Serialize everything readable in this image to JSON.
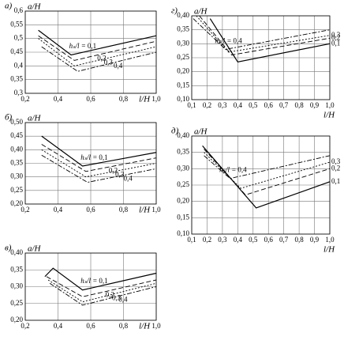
{
  "chart_data": [
    {
      "type": "line",
      "panel_label": "а)",
      "ylabel": "a/H",
      "xlabel": "l/H",
      "annotation": "hₛ/l =",
      "grid": true,
      "xlim": [
        0.2,
        1.0
      ],
      "ylim": [
        0.3,
        0.6
      ],
      "xticks": [
        {
          "value": 0.2,
          "label": "0,2"
        },
        {
          "value": 0.4,
          "label": "0,4"
        },
        {
          "value": 0.6,
          "label": "0,6"
        },
        {
          "value": 0.8,
          "label": "0,8"
        },
        {
          "value": 1.0,
          "label": "1,0"
        }
      ],
      "yticks": [
        {
          "value": 0.3,
          "label": "0,3"
        },
        {
          "value": 0.35,
          "label": "0,35"
        },
        {
          "value": 0.4,
          "label": "0,4"
        },
        {
          "value": 0.45,
          "label": "0,45"
        },
        {
          "value": 0.5,
          "label": "0,5"
        },
        {
          "value": 0.55,
          "label": "0,55"
        },
        {
          "value": 0.6,
          "label": "0,6"
        }
      ],
      "series": [
        {
          "name": "0,1",
          "color": "#000000",
          "dash": "none",
          "x": [
            0.28,
            0.48,
            1.0
          ],
          "values": [
            0.53,
            0.44,
            0.51
          ]
        },
        {
          "name": "0,2",
          "color": "#000000",
          "dash": "6 3",
          "x": [
            0.28,
            0.5,
            1.0
          ],
          "values": [
            0.51,
            0.42,
            0.49
          ]
        },
        {
          "name": "0,3",
          "color": "#000000",
          "dash": "2 2",
          "x": [
            0.28,
            0.5,
            1.0
          ],
          "values": [
            0.5,
            0.4,
            0.47
          ]
        },
        {
          "name": "0,4",
          "color": "#000000",
          "dash": "6 2 2 2",
          "x": [
            0.3,
            0.52,
            1.0
          ],
          "values": [
            0.47,
            0.38,
            0.45
          ]
        }
      ]
    },
    {
      "type": "line",
      "panel_label": "б)",
      "ylabel": "a/H",
      "xlabel": "l/H",
      "annotation": "hₛ/l =",
      "grid": true,
      "xlim": [
        0.2,
        1.0
      ],
      "ylim": [
        0.2,
        0.5
      ],
      "xticks": [
        {
          "value": 0.2,
          "label": "0,2"
        },
        {
          "value": 0.4,
          "label": "0,4"
        },
        {
          "value": 0.6,
          "label": "0,6"
        },
        {
          "value": 0.8,
          "label": "0,8"
        },
        {
          "value": 1.0,
          "label": "1,0"
        }
      ],
      "yticks": [
        {
          "value": 0.2,
          "label": "0,20"
        },
        {
          "value": 0.25,
          "label": "0,25"
        },
        {
          "value": 0.3,
          "label": "0,30"
        },
        {
          "value": 0.35,
          "label": "0,35"
        },
        {
          "value": 0.4,
          "label": "0,40"
        },
        {
          "value": 0.45,
          "label": "0,45"
        },
        {
          "value": 0.5,
          "label": "0,50"
        }
      ],
      "series": [
        {
          "name": "0,1",
          "color": "#000000",
          "dash": "none",
          "x": [
            0.3,
            0.55,
            1.0
          ],
          "values": [
            0.45,
            0.34,
            0.39
          ]
        },
        {
          "name": "0,2",
          "color": "#000000",
          "dash": "6 3",
          "x": [
            0.3,
            0.57,
            1.0
          ],
          "values": [
            0.42,
            0.32,
            0.37
          ]
        },
        {
          "name": "0,3",
          "color": "#000000",
          "dash": "2 2",
          "x": [
            0.3,
            0.57,
            1.0
          ],
          "values": [
            0.4,
            0.3,
            0.35
          ]
        },
        {
          "name": "0,4",
          "color": "#000000",
          "dash": "6 2 2 2",
          "x": [
            0.3,
            0.58,
            1.0
          ],
          "values": [
            0.38,
            0.28,
            0.33
          ]
        }
      ]
    },
    {
      "type": "line",
      "panel_label": "в)",
      "ylabel": "a/H",
      "xlabel": "l/H",
      "annotation": "hₛ/l =",
      "grid": true,
      "xlim": [
        0.2,
        1.0
      ],
      "ylim": [
        0.2,
        0.4
      ],
      "xticks": [
        {
          "value": 0.2,
          "label": "0,2"
        },
        {
          "value": 0.4,
          "label": "0,4"
        },
        {
          "value": 0.6,
          "label": "0,6"
        },
        {
          "value": 0.8,
          "label": "0,8"
        },
        {
          "value": 1.0,
          "label": "1,0"
        }
      ],
      "yticks": [
        {
          "value": 0.2,
          "label": "0,20"
        },
        {
          "value": 0.25,
          "label": "0,25"
        },
        {
          "value": 0.3,
          "label": "0,30"
        },
        {
          "value": 0.35,
          "label": "0,35"
        },
        {
          "value": 0.4,
          "label": "0,40"
        }
      ],
      "series": [
        {
          "name": "0,1",
          "color": "#000000",
          "dash": "none",
          "x": [
            0.32,
            0.37,
            0.55,
            1.0
          ],
          "values": [
            0.33,
            0.355,
            0.29,
            0.34
          ]
        },
        {
          "name": "0,2",
          "color": "#000000",
          "dash": "6 3",
          "x": [
            0.33,
            0.55,
            1.0
          ],
          "values": [
            0.33,
            0.27,
            0.32
          ]
        },
        {
          "name": "0,3",
          "color": "#000000",
          "dash": "2 2",
          "x": [
            0.34,
            0.55,
            1.0
          ],
          "values": [
            0.32,
            0.255,
            0.31
          ]
        },
        {
          "name": "0,4",
          "color": "#000000",
          "dash": "6 2 2 2",
          "x": [
            0.35,
            0.55,
            1.0
          ],
          "values": [
            0.31,
            0.245,
            0.3
          ]
        }
      ]
    },
    {
      "type": "line",
      "panel_label": "г)",
      "ylabel": "a/H",
      "xlabel": "l/H",
      "annotation": "hₛ/l =",
      "grid": true,
      "xlim": [
        0.1,
        1.0
      ],
      "ylim": [
        0.1,
        0.4
      ],
      "xticks": [
        {
          "value": 0.1,
          "label": "0,1"
        },
        {
          "value": 0.2,
          "label": "0,2"
        },
        {
          "value": 0.3,
          "label": "0,3"
        },
        {
          "value": 0.4,
          "label": "0,4"
        },
        {
          "value": 0.5,
          "label": "0,5"
        },
        {
          "value": 0.6,
          "label": "0,6"
        },
        {
          "value": 0.7,
          "label": "0,7"
        },
        {
          "value": 0.8,
          "label": "0,8"
        },
        {
          "value": 0.9,
          "label": "0,9"
        },
        {
          "value": 1.0,
          "label": "1,0"
        }
      ],
      "yticks": [
        {
          "value": 0.1,
          "label": "0,10"
        },
        {
          "value": 0.15,
          "label": "0,15"
        },
        {
          "value": 0.2,
          "label": "0,20"
        },
        {
          "value": 0.25,
          "label": "0,25"
        },
        {
          "value": 0.3,
          "label": "0,30"
        },
        {
          "value": 0.35,
          "label": "0,35"
        },
        {
          "value": 0.4,
          "label": "0,40"
        }
      ],
      "series": [
        {
          "name": "0,1",
          "color": "#000000",
          "dash": "none",
          "x": [
            0.22,
            0.4,
            1.0
          ],
          "values": [
            0.39,
            0.235,
            0.3
          ]
        },
        {
          "name": "0,2",
          "color": "#000000",
          "dash": "6 3",
          "x": [
            0.15,
            0.36,
            1.0
          ],
          "values": [
            0.4,
            0.26,
            0.32
          ]
        },
        {
          "name": "0,3",
          "color": "#000000",
          "dash": "2 2",
          "x": [
            0.13,
            0.34,
            1.0
          ],
          "values": [
            0.4,
            0.27,
            0.33
          ]
        },
        {
          "name": "0,4",
          "color": "#000000",
          "dash": "6 2 2 2",
          "x": [
            0.11,
            0.32,
            1.0
          ],
          "values": [
            0.39,
            0.28,
            0.35
          ]
        }
      ]
    },
    {
      "type": "line",
      "panel_label": "д)",
      "ylabel": "a/H",
      "xlabel": "l/H",
      "annotation": "hₛ/l =",
      "grid": true,
      "xlim": [
        0.1,
        1.0
      ],
      "ylim": [
        0.1,
        0.4
      ],
      "xticks": [
        {
          "value": 0.1,
          "label": "0,1"
        },
        {
          "value": 0.2,
          "label": "0,2"
        },
        {
          "value": 0.3,
          "label": "0,3"
        },
        {
          "value": 0.4,
          "label": "0,4"
        },
        {
          "value": 0.5,
          "label": "0,5"
        },
        {
          "value": 0.6,
          "label": "0,6"
        },
        {
          "value": 0.7,
          "label": "0,7"
        },
        {
          "value": 0.8,
          "label": "0,8"
        },
        {
          "value": 0.9,
          "label": "0,9"
        },
        {
          "value": 1.0,
          "label": "1,0"
        }
      ],
      "yticks": [
        {
          "value": 0.1,
          "label": "0,10"
        },
        {
          "value": 0.15,
          "label": "0,15"
        },
        {
          "value": 0.2,
          "label": "0,20"
        },
        {
          "value": 0.25,
          "label": "0,25"
        },
        {
          "value": 0.3,
          "label": "0,30"
        },
        {
          "value": 0.35,
          "label": "0,35"
        },
        {
          "value": 0.4,
          "label": "0,40"
        }
      ],
      "series": [
        {
          "name": "0,1",
          "color": "#000000",
          "dash": "none",
          "x": [
            0.17,
            0.52,
            1.0
          ],
          "values": [
            0.37,
            0.18,
            0.26
          ]
        },
        {
          "name": "0,2",
          "color": "#000000",
          "dash": "6 3",
          "x": [
            0.18,
            0.45,
            1.0
          ],
          "values": [
            0.36,
            0.22,
            0.3
          ]
        },
        {
          "name": "0,3",
          "color": "#000000",
          "dash": "2 2",
          "x": [
            0.18,
            0.42,
            1.0
          ],
          "values": [
            0.35,
            0.24,
            0.32
          ]
        },
        {
          "name": "0,4",
          "color": "#000000",
          "dash": "6 2 2 2",
          "x": [
            0.18,
            0.35,
            1.0
          ],
          "values": [
            0.34,
            0.27,
            0.34
          ]
        }
      ]
    }
  ]
}
